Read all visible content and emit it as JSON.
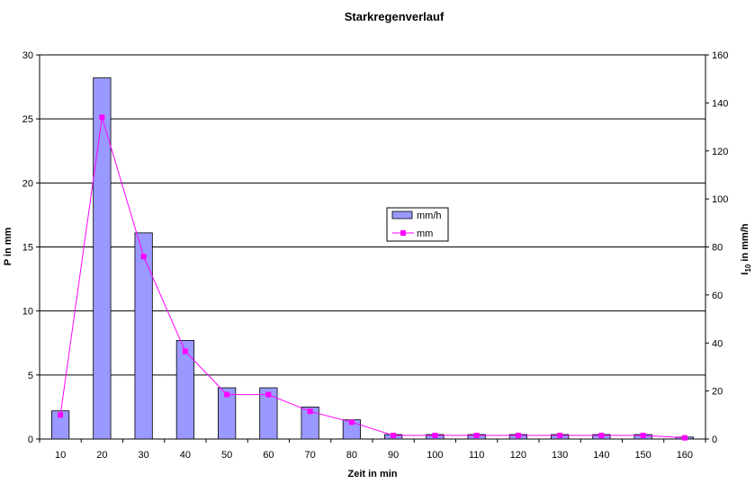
{
  "chart_data": {
    "type": "bar",
    "title": "Starkregenverlauf",
    "xlabel": "Zeit in min",
    "ylabel_left": "P in mm",
    "ylabel_right": {
      "main": "I",
      "sub": "10",
      "rest": " in mm/h"
    },
    "categories": [
      10,
      20,
      30,
      40,
      50,
      60,
      70,
      80,
      90,
      100,
      110,
      120,
      130,
      140,
      150,
      160
    ],
    "series": [
      {
        "name": "mm/h",
        "type": "bar",
        "axis": "left",
        "color": "#9999ff",
        "values": [
          2.2,
          28.2,
          16.1,
          7.7,
          4.0,
          4.0,
          2.5,
          1.5,
          0.35,
          0.35,
          0.35,
          0.35,
          0.35,
          0.35,
          0.35,
          0.15
        ]
      },
      {
        "name": "mm",
        "type": "line",
        "axis": "right",
        "color": "#ff00ff",
        "values": [
          10,
          134,
          76,
          36.5,
          18.5,
          18.5,
          11.5,
          7,
          1.5,
          1.5,
          1.5,
          1.5,
          1.5,
          1.5,
          1.5,
          0.5
        ]
      }
    ],
    "yleft": {
      "min": 0,
      "max": 30,
      "ticks": [
        0,
        5,
        10,
        15,
        20,
        25,
        30
      ]
    },
    "yright": {
      "min": 0,
      "max": 160,
      "ticks": [
        0,
        20,
        40,
        60,
        80,
        100,
        120,
        140,
        160
      ]
    },
    "grid": true,
    "legend_position": "center-right"
  }
}
